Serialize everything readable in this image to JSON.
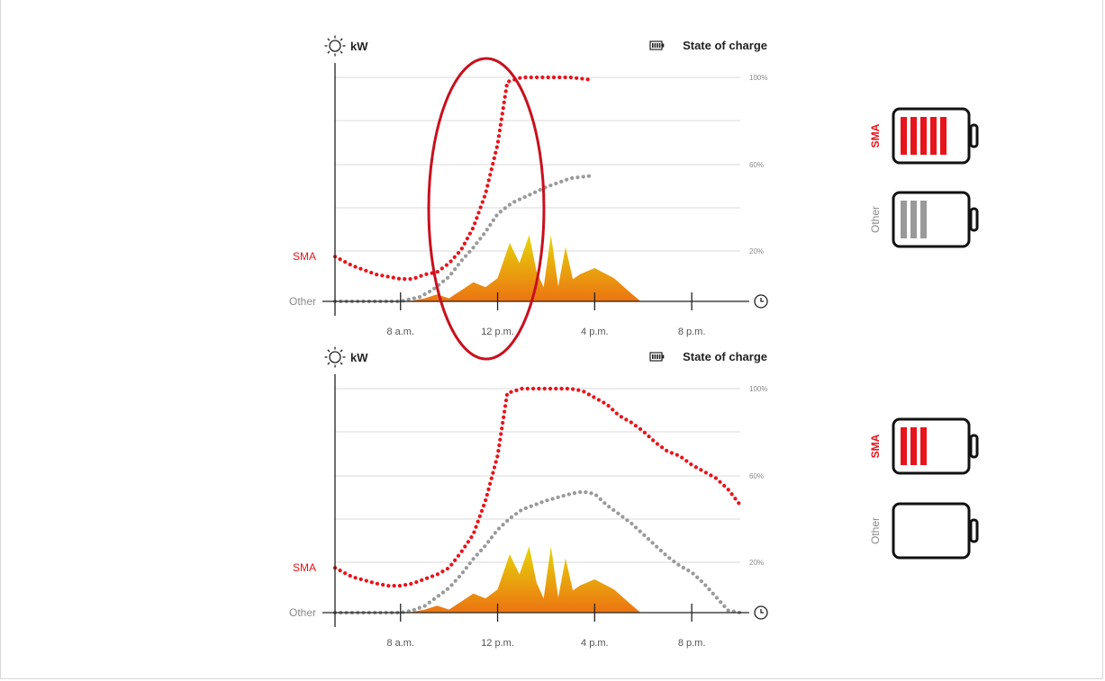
{
  "colors": {
    "sma": "#e8141b",
    "other": "#9a9a9a",
    "solar_top": "#e5d60a",
    "solar_bottom": "#ec7412",
    "highlight": "#c8101e",
    "grid": "#d9d9d9",
    "axis": "#222222"
  },
  "legend": {
    "power_icon": "sun-icon",
    "power_unit": "kW",
    "soc_icon": "battery-icon",
    "soc_label": "State of charge"
  },
  "series_labels": {
    "sma": "SMA",
    "other": "Other"
  },
  "soc_ticks": [
    "100%",
    "60%",
    "20%"
  ],
  "time_icon": "clock-icon",
  "x_tick_labels": [
    "8 a.m.",
    "12 p.m.",
    "4 p.m.",
    "8 p.m."
  ],
  "batteries": [
    {
      "chart": 0,
      "label": "SMA",
      "color": "#e8141b",
      "bars": 5
    },
    {
      "chart": 0,
      "label": "Other",
      "color": "#9a9a9a",
      "bars": 3
    },
    {
      "chart": 1,
      "label": "SMA",
      "color": "#e8141b",
      "bars": 3
    },
    {
      "chart": 1,
      "label": "Other",
      "color": "#9a9a9a",
      "bars": 0
    }
  ],
  "chart_data": [
    {
      "type": "area",
      "x_unit": "hour of day",
      "xlim": [
        5.3,
        22.0
      ],
      "x_ticks": [
        5.3,
        8,
        12,
        16,
        20
      ],
      "ylim_soc": [
        0,
        100
      ],
      "solar_kw_relative": [
        [
          8.3,
          0
        ],
        [
          9.0,
          3
        ],
        [
          9.5,
          7
        ],
        [
          10.0,
          3
        ],
        [
          10.5,
          11
        ],
        [
          11.0,
          19
        ],
        [
          11.5,
          14
        ],
        [
          12.0,
          23
        ],
        [
          12.5,
          58
        ],
        [
          12.9,
          38
        ],
        [
          13.3,
          66
        ],
        [
          13.6,
          30
        ],
        [
          13.9,
          14
        ],
        [
          14.2,
          66
        ],
        [
          14.5,
          15
        ],
        [
          14.8,
          54
        ],
        [
          15.1,
          22
        ],
        [
          15.4,
          27
        ],
        [
          16.0,
          33
        ],
        [
          16.8,
          23
        ],
        [
          17.5,
          8
        ],
        [
          17.9,
          0
        ]
      ],
      "series": [
        {
          "name": "SMA",
          "values": [
            [
              5.3,
              20
            ],
            [
              6.0,
              16
            ],
            [
              7.0,
              12
            ],
            [
              7.5,
              11
            ],
            [
              8.0,
              10
            ],
            [
              8.5,
              10
            ],
            [
              9.0,
              12
            ],
            [
              9.5,
              13
            ],
            [
              10.0,
              17
            ],
            [
              10.5,
              23
            ],
            [
              11.0,
              33
            ],
            [
              11.5,
              48
            ],
            [
              12.0,
              70
            ],
            [
              12.4,
              98
            ],
            [
              13.0,
              100
            ],
            [
              14.0,
              100
            ],
            [
              15.0,
              100
            ],
            [
              15.8,
              99
            ]
          ]
        },
        {
          "name": "Other",
          "values": [
            [
              5.3,
              0
            ],
            [
              6.0,
              0
            ],
            [
              7.0,
              0
            ],
            [
              8.0,
              0
            ],
            [
              8.8,
              2
            ],
            [
              9.3,
              5
            ],
            [
              10.0,
              11
            ],
            [
              10.5,
              18
            ],
            [
              11.0,
              24
            ],
            [
              11.5,
              31
            ],
            [
              12.0,
              39
            ],
            [
              12.6,
              44
            ],
            [
              13.0,
              46
            ],
            [
              14.0,
              51
            ],
            [
              15.0,
              55
            ],
            [
              15.8,
              56
            ]
          ]
        }
      ]
    },
    {
      "type": "area",
      "x_unit": "hour of day",
      "xlim": [
        5.3,
        22.0
      ],
      "x_ticks": [
        5.3,
        8,
        12,
        16,
        20
      ],
      "ylim_soc": [
        0,
        100
      ],
      "solar_kw_relative": [
        [
          8.3,
          0
        ],
        [
          9.0,
          3
        ],
        [
          9.5,
          7
        ],
        [
          10.0,
          3
        ],
        [
          10.5,
          11
        ],
        [
          11.0,
          19
        ],
        [
          11.5,
          14
        ],
        [
          12.0,
          23
        ],
        [
          12.5,
          58
        ],
        [
          12.9,
          38
        ],
        [
          13.3,
          66
        ],
        [
          13.6,
          30
        ],
        [
          13.9,
          14
        ],
        [
          14.2,
          66
        ],
        [
          14.5,
          15
        ],
        [
          14.8,
          54
        ],
        [
          15.1,
          22
        ],
        [
          15.4,
          27
        ],
        [
          16.0,
          33
        ],
        [
          16.8,
          23
        ],
        [
          17.5,
          8
        ],
        [
          17.9,
          0
        ]
      ],
      "series": [
        {
          "name": "SMA",
          "values": [
            [
              5.3,
              20
            ],
            [
              6.0,
              16
            ],
            [
              7.0,
              13
            ],
            [
              7.5,
              12
            ],
            [
              8.0,
              12
            ],
            [
              8.5,
              13
            ],
            [
              9.0,
              15
            ],
            [
              9.5,
              17
            ],
            [
              10.0,
              20
            ],
            [
              10.5,
              27
            ],
            [
              11.0,
              35
            ],
            [
              11.5,
              50
            ],
            [
              12.0,
              70
            ],
            [
              12.4,
              98
            ],
            [
              13.0,
              100
            ],
            [
              14.0,
              100
            ],
            [
              15.0,
              100
            ],
            [
              15.5,
              99
            ],
            [
              16.0,
              96
            ],
            [
              16.5,
              93
            ],
            [
              17.0,
              88
            ],
            [
              17.5,
              85
            ],
            [
              18.0,
              81
            ],
            [
              18.5,
              76
            ],
            [
              19.0,
              72
            ],
            [
              19.5,
              70
            ],
            [
              20.0,
              66
            ],
            [
              20.5,
              63
            ],
            [
              21.0,
              60
            ],
            [
              21.5,
              55
            ],
            [
              22.0,
              48
            ]
          ]
        },
        {
          "name": "Other",
          "values": [
            [
              5.3,
              0
            ],
            [
              6.0,
              0
            ],
            [
              7.0,
              0
            ],
            [
              8.0,
              0
            ],
            [
              8.5,
              1
            ],
            [
              9.0,
              3
            ],
            [
              9.5,
              7
            ],
            [
              10.0,
              11
            ],
            [
              10.5,
              17
            ],
            [
              11.0,
              24
            ],
            [
              11.5,
              30
            ],
            [
              12.0,
              37
            ],
            [
              12.5,
              42
            ],
            [
              13.0,
              46
            ],
            [
              14.0,
              50
            ],
            [
              15.0,
              53
            ],
            [
              15.5,
              54
            ],
            [
              16.0,
              53
            ],
            [
              16.5,
              48
            ],
            [
              17.0,
              44
            ],
            [
              17.5,
              40
            ],
            [
              18.0,
              35
            ],
            [
              18.5,
              30
            ],
            [
              19.0,
              25
            ],
            [
              19.5,
              21
            ],
            [
              20.0,
              18
            ],
            [
              20.5,
              13
            ],
            [
              21.0,
              7
            ],
            [
              21.5,
              1
            ],
            [
              22.0,
              0
            ]
          ]
        }
      ]
    }
  ]
}
